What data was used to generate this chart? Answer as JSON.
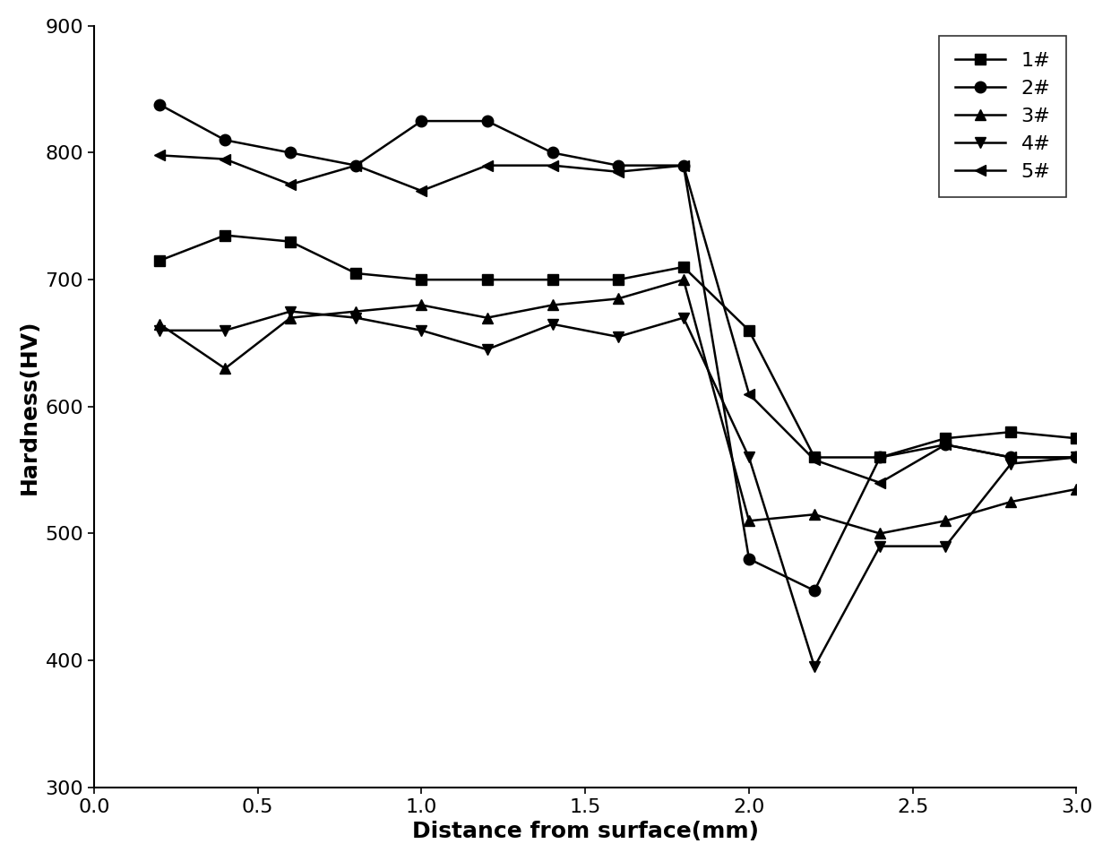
{
  "title": "",
  "xlabel": "Distance from surface(mm)",
  "ylabel": "Hardness(HV)",
  "xlim": [
    0.0,
    3.0
  ],
  "ylim": [
    300,
    900
  ],
  "yticks": [
    300,
    400,
    500,
    600,
    700,
    800,
    900
  ],
  "xticks": [
    0.0,
    0.5,
    1.0,
    1.5,
    2.0,
    2.5,
    3.0
  ],
  "series": [
    {
      "label": "1#",
      "marker": "s",
      "x": [
        0.2,
        0.4,
        0.6,
        0.8,
        1.0,
        1.2,
        1.4,
        1.6,
        1.8,
        2.0,
        2.2,
        2.4,
        2.6,
        2.8,
        3.0
      ],
      "y": [
        715,
        735,
        730,
        705,
        700,
        700,
        700,
        700,
        710,
        660,
        560,
        560,
        575,
        580,
        575
      ]
    },
    {
      "label": "2#",
      "marker": "o",
      "x": [
        0.2,
        0.4,
        0.6,
        0.8,
        1.0,
        1.2,
        1.4,
        1.6,
        1.8,
        2.0,
        2.2,
        2.4,
        2.6,
        2.8,
        3.0
      ],
      "y": [
        838,
        810,
        800,
        790,
        825,
        825,
        800,
        790,
        790,
        480,
        455,
        560,
        570,
        560,
        560
      ]
    },
    {
      "label": "3#",
      "marker": "^",
      "x": [
        0.2,
        0.4,
        0.6,
        0.8,
        1.0,
        1.2,
        1.4,
        1.6,
        1.8,
        2.0,
        2.2,
        2.4,
        2.6,
        2.8,
        3.0
      ],
      "y": [
        665,
        630,
        670,
        675,
        680,
        670,
        680,
        685,
        700,
        510,
        515,
        500,
        510,
        525,
        535
      ]
    },
    {
      "label": "4#",
      "marker": "v",
      "x": [
        0.2,
        0.4,
        0.6,
        0.8,
        1.0,
        1.2,
        1.4,
        1.6,
        1.8,
        2.0,
        2.2,
        2.4,
        2.6,
        2.8,
        3.0
      ],
      "y": [
        660,
        660,
        675,
        670,
        660,
        645,
        665,
        655,
        670,
        560,
        395,
        490,
        490,
        555,
        560
      ]
    },
    {
      "label": "5#",
      "marker": "<",
      "x": [
        0.2,
        0.4,
        0.6,
        0.8,
        1.0,
        1.2,
        1.4,
        1.6,
        1.8,
        2.0,
        2.2,
        2.4,
        2.6,
        2.8,
        3.0
      ],
      "y": [
        798,
        795,
        775,
        790,
        770,
        790,
        790,
        785,
        790,
        610,
        558,
        540,
        570,
        560,
        560
      ]
    }
  ],
  "line_color": "#000000",
  "line_width": 1.8,
  "marker_size": 9,
  "legend_loc": "upper right",
  "legend_fontsize": 16,
  "tick_fontsize": 16,
  "label_fontsize": 18,
  "background_color": "#ffffff"
}
